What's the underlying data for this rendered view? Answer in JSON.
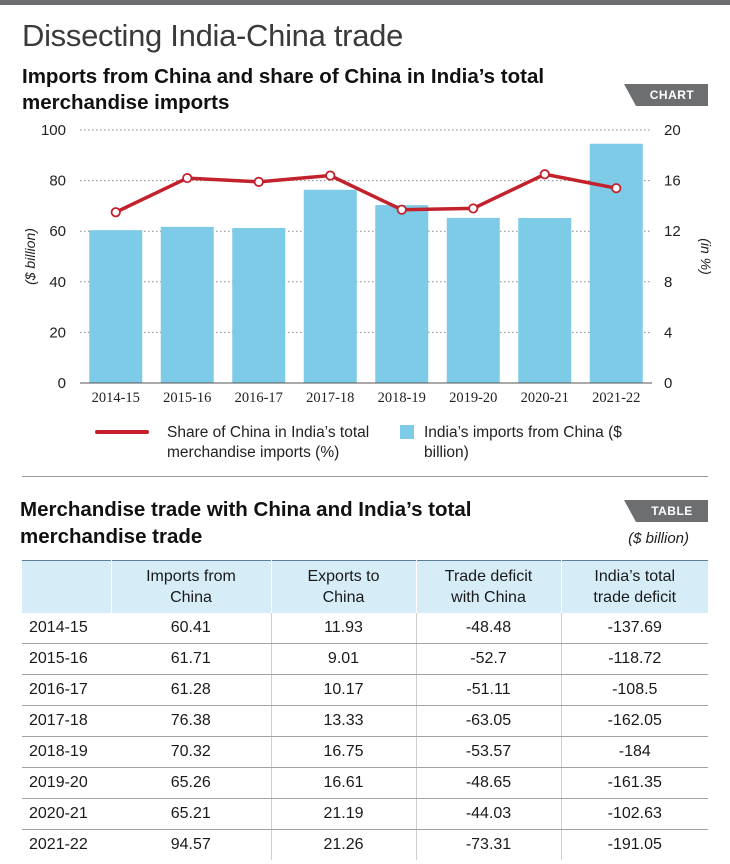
{
  "header": {
    "title": "Dissecting India-China trade",
    "chart_title": "Imports from China and share of China in India’s total merchandise imports",
    "chart_tag": "CHART",
    "table_title": "Merchandise trade with China and India’s total merchandise trade",
    "table_tag": "TABLE",
    "table_unit": "($ billion)"
  },
  "colors": {
    "bar": "#7ecbe8",
    "line": "#c3212c",
    "tag_bg": "#6d6e70",
    "table_header_bg": "#d6ecf7"
  },
  "legend": {
    "line_label": "Share of China in India’s total merchandise imports (%)",
    "bar_label": "India’s imports from China ($ billion)"
  },
  "chart_data": {
    "type": "bar",
    "categories": [
      "2014-15",
      "2015-16",
      "2016-17",
      "2017-18",
      "2018-19",
      "2019-20",
      "2020-21",
      "2021-22"
    ],
    "series": [
      {
        "name": "India’s imports from China ($ billion)",
        "type": "bar",
        "axis": "left",
        "values": [
          60.41,
          61.71,
          61.28,
          76.38,
          70.32,
          65.26,
          65.21,
          94.57
        ]
      },
      {
        "name": "Share of China in India’s total merchandise imports (%)",
        "type": "line",
        "axis": "right",
        "values": [
          13.5,
          16.2,
          15.9,
          16.4,
          13.7,
          13.8,
          16.5,
          15.4
        ]
      }
    ],
    "ylabel": "($ billion)",
    "y2label": "(in %)",
    "ylim": [
      0,
      100
    ],
    "y2lim": [
      0,
      20
    ],
    "yticks": [
      0,
      20,
      40,
      60,
      80,
      100
    ],
    "y2ticks": [
      0,
      4,
      8,
      12,
      16,
      20
    ],
    "grid": "horizontal dotted",
    "legend_position": "bottom"
  },
  "table": {
    "columns": [
      "",
      "Imports from China",
      "Exports to China",
      "Trade deficit with China",
      "India’s total trade deficit"
    ],
    "rows": [
      [
        "2014-15",
        "60.41",
        "11.93",
        "-48.48",
        "-137.69"
      ],
      [
        "2015-16",
        "61.71",
        "9.01",
        "-52.7",
        "-118.72"
      ],
      [
        "2016-17",
        "61.28",
        "10.17",
        "-51.11",
        "-108.5"
      ],
      [
        "2017-18",
        "76.38",
        "13.33",
        "-63.05",
        "-162.05"
      ],
      [
        "2018-19",
        "70.32",
        "16.75",
        "-53.57",
        "-184"
      ],
      [
        "2019-20",
        "65.26",
        "16.61",
        "-48.65",
        "-161.35"
      ],
      [
        "2020-21",
        "65.21",
        "21.19",
        "-44.03",
        "-102.63"
      ],
      [
        "2021-22",
        "94.57",
        "21.26",
        "-73.31",
        "-191.05"
      ]
    ]
  }
}
